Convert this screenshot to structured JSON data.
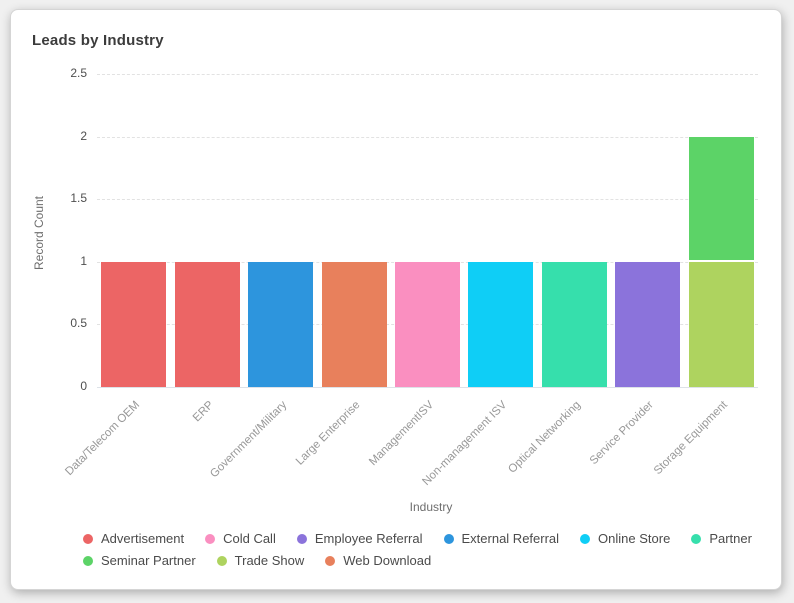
{
  "card": {
    "title": "Leads by Industry"
  },
  "chart_data": {
    "type": "bar",
    "stacked": true,
    "title": "Leads by Industry",
    "xlabel": "Industry",
    "ylabel": "Record Count",
    "ylim": [
      0,
      2.5
    ],
    "ytick_step": 0.5,
    "ytick_labels": [
      "0",
      "0.5",
      "1",
      "1.5",
      "2",
      "2.5"
    ],
    "grid": "dashed-horizontal",
    "legend_position": "bottom",
    "stack_order": "reverse-series-bottom-up",
    "categories": [
      "Data/Telecom OEM",
      "ERP",
      "Government/Military",
      "Large Enterprise",
      "ManagementISV",
      "Non-management ISV",
      "Optical Networking",
      "Service Provider",
      "Storage Equipment"
    ],
    "series": [
      {
        "name": "Advertisement",
        "color": "#EC6565",
        "values": [
          1,
          1,
          0,
          0,
          0,
          0,
          0,
          0,
          0
        ]
      },
      {
        "name": "Cold Call",
        "color": "#FA8FC0",
        "values": [
          0,
          0,
          0,
          0,
          1,
          0,
          0,
          0,
          0
        ]
      },
      {
        "name": "Employee Referral",
        "color": "#8B73DB",
        "values": [
          0,
          0,
          0,
          0,
          0,
          0,
          0,
          1,
          0
        ]
      },
      {
        "name": "External Referral",
        "color": "#2D95DD",
        "values": [
          0,
          0,
          1,
          0,
          0,
          0,
          0,
          0,
          0
        ]
      },
      {
        "name": "Online Store",
        "color": "#0FCEF6",
        "values": [
          0,
          0,
          0,
          0,
          0,
          1,
          0,
          0,
          0
        ]
      },
      {
        "name": "Partner",
        "color": "#36DFAC",
        "values": [
          0,
          0,
          0,
          0,
          0,
          0,
          1,
          0,
          0
        ]
      },
      {
        "name": "Seminar Partner",
        "color": "#5CD367",
        "values": [
          0,
          0,
          0,
          0,
          0,
          0,
          0,
          0,
          1
        ]
      },
      {
        "name": "Trade Show",
        "color": "#AED35F",
        "values": [
          0,
          0,
          0,
          0,
          0,
          0,
          0,
          0,
          1
        ]
      },
      {
        "name": "Web Download",
        "color": "#E8805C",
        "values": [
          0,
          0,
          0,
          1,
          0,
          0,
          0,
          0,
          0
        ]
      }
    ]
  }
}
